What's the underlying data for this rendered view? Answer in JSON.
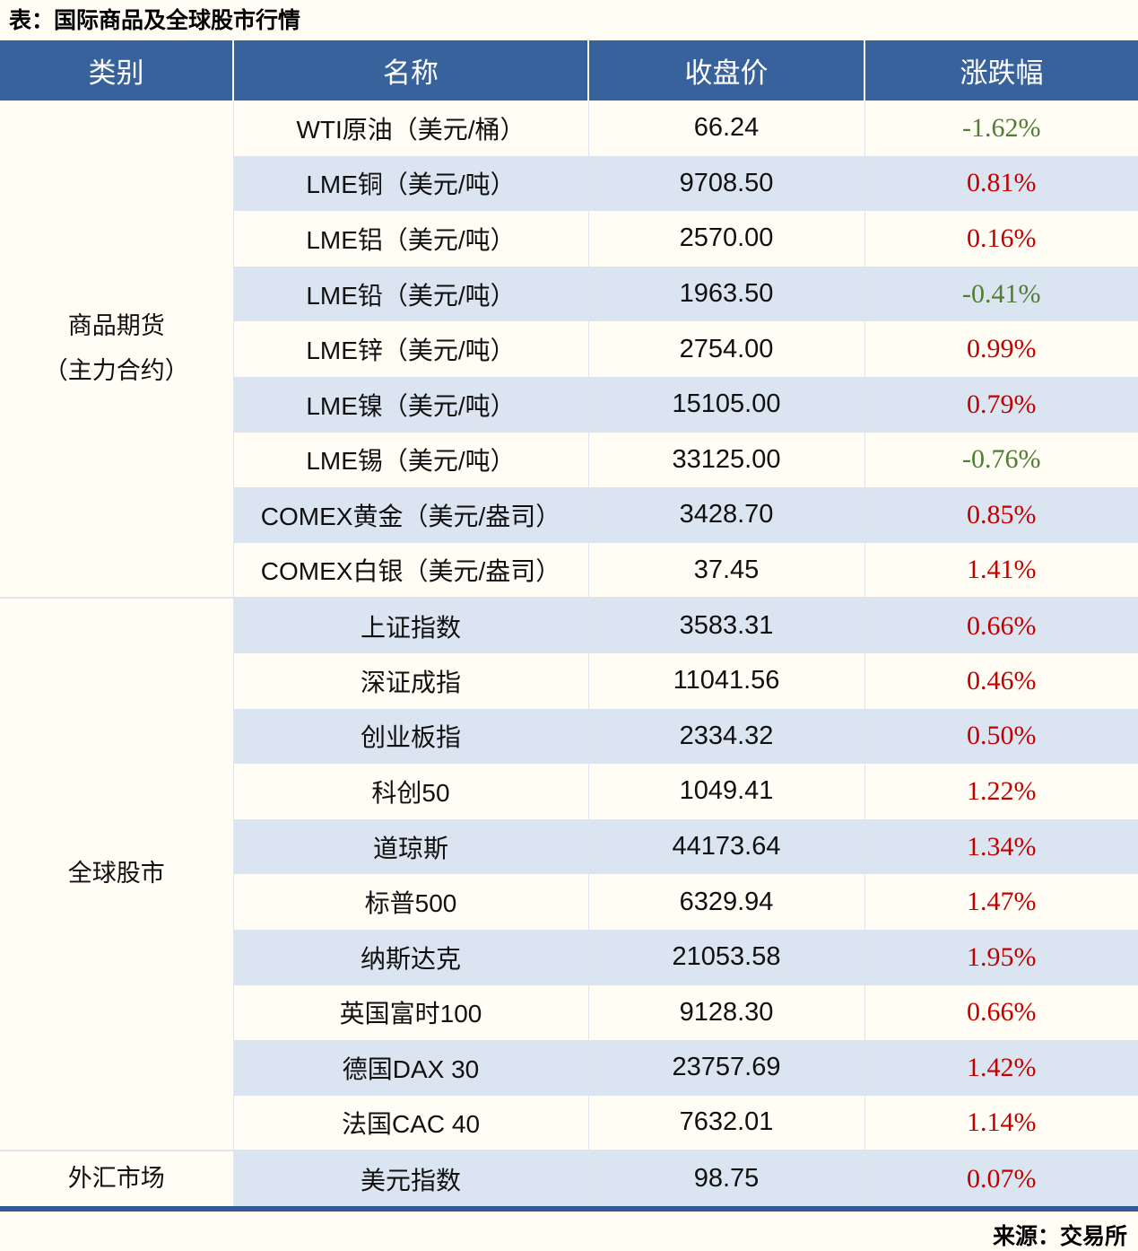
{
  "title": "表：国际商品及全球股市行情",
  "source": "来源：交易所",
  "colors": {
    "header_bg": "#38629b",
    "stripe_bg": "#dbe5f1",
    "page_bg": "#fffdf4",
    "up_red": "#c00000",
    "down_green": "#4f7d33",
    "bottom_border": "#2e5b94"
  },
  "chart_data": {
    "type": "table",
    "title": "表：国际商品及全球股市行情",
    "columns": [
      "类别",
      "名称",
      "收盘价",
      "涨跌幅"
    ],
    "sections": [
      {
        "category_lines": [
          "商品期货",
          "（主力合约）"
        ],
        "category": "商品期货（主力合约）",
        "rows": [
          {
            "name": "WTI原油（美元/桶）",
            "close": "66.24",
            "change": "-1.62%",
            "direction": "down"
          },
          {
            "name": "LME铜（美元/吨）",
            "close": "9708.50",
            "change": "0.81%",
            "direction": "up"
          },
          {
            "name": "LME铝（美元/吨）",
            "close": "2570.00",
            "change": "0.16%",
            "direction": "up"
          },
          {
            "name": "LME铅（美元/吨）",
            "close": "1963.50",
            "change": "-0.41%",
            "direction": "down"
          },
          {
            "name": "LME锌（美元/吨）",
            "close": "2754.00",
            "change": "0.99%",
            "direction": "up"
          },
          {
            "name": "LME镍（美元/吨）",
            "close": "15105.00",
            "change": "0.79%",
            "direction": "up"
          },
          {
            "name": "LME锡（美元/吨）",
            "close": "33125.00",
            "change": "-0.76%",
            "direction": "down"
          },
          {
            "name": "COMEX黄金（美元/盎司）",
            "close": "3428.70",
            "change": "0.85%",
            "direction": "up"
          },
          {
            "name": "COMEX白银（美元/盎司）",
            "close": "37.45",
            "change": "1.41%",
            "direction": "up"
          }
        ]
      },
      {
        "category_lines": [
          "全球股市"
        ],
        "category": "全球股市",
        "rows": [
          {
            "name": "上证指数",
            "close": "3583.31",
            "change": "0.66%",
            "direction": "up"
          },
          {
            "name": "深证成指",
            "close": "11041.56",
            "change": "0.46%",
            "direction": "up"
          },
          {
            "name": "创业板指",
            "close": "2334.32",
            "change": "0.50%",
            "direction": "up"
          },
          {
            "name": "科创50",
            "close": "1049.41",
            "change": "1.22%",
            "direction": "up"
          },
          {
            "name": "道琼斯",
            "close": "44173.64",
            "change": "1.34%",
            "direction": "up"
          },
          {
            "name": "标普500",
            "close": "6329.94",
            "change": "1.47%",
            "direction": "up"
          },
          {
            "name": "纳斯达克",
            "close": "21053.58",
            "change": "1.95%",
            "direction": "up"
          },
          {
            "name": "英国富时100",
            "close": "9128.30",
            "change": "0.66%",
            "direction": "up"
          },
          {
            "name": "德国DAX 30",
            "close": "23757.69",
            "change": "1.42%",
            "direction": "up"
          },
          {
            "name": "法国CAC 40",
            "close": "7632.01",
            "change": "1.14%",
            "direction": "up"
          }
        ]
      },
      {
        "category_lines": [
          "外汇市场"
        ],
        "category": "外汇市场",
        "rows": [
          {
            "name": "美元指数",
            "close": "98.75",
            "change": "0.07%",
            "direction": "up"
          }
        ]
      }
    ]
  }
}
